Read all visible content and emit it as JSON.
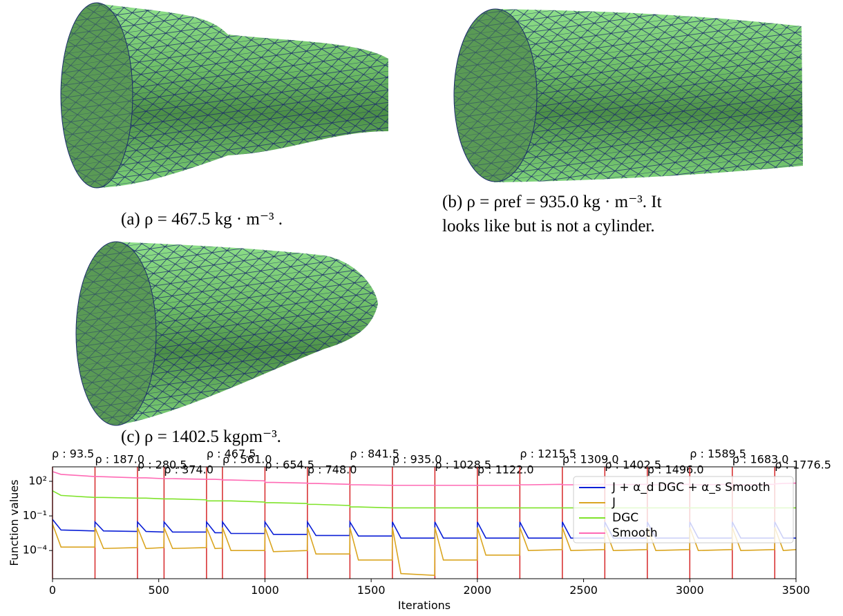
{
  "captions": {
    "a": "(a) ρ = 467.5 kg · m⁻³ .",
    "b": [
      "(b)  ρ  =  ρref  =  935.0 kg · m⁻³.   It",
      "looks like but is not a cylinder."
    ],
    "c": "(c) ρ = 1402.5 kgρm⁻³."
  },
  "chart_data": {
    "type": "line",
    "xlabel": "Iterations",
    "ylabel": "Function values",
    "log_y": true,
    "xlim": [
      0,
      3500
    ],
    "xticks": [
      0,
      500,
      1000,
      1500,
      2000,
      2500,
      3000,
      3500
    ],
    "ylim": [
      3.6e-07,
      1800
    ],
    "yticks": [
      {
        "value": 100,
        "label": "10²"
      },
      {
        "value": 0.1,
        "label": "10⁻¹"
      },
      {
        "value": 0.0001,
        "label": "10⁻⁴"
      }
    ],
    "legend": "right",
    "rho_line_color": "#d62728",
    "rho_changes": [
      {
        "x": 0,
        "label": "ρ : 93.5"
      },
      {
        "x": 200,
        "label": "ρ : 187.0"
      },
      {
        "x": 400,
        "label": "ρ : 280.5"
      },
      {
        "x": 525,
        "label": "ρ : 374.0"
      },
      {
        "x": 725,
        "label": "ρ : 467.5"
      },
      {
        "x": 800,
        "label": "ρ : 561.0"
      },
      {
        "x": 1000,
        "label": "ρ : 654.5"
      },
      {
        "x": 1200,
        "label": "ρ : 748.0"
      },
      {
        "x": 1400,
        "label": "ρ : 841.5"
      },
      {
        "x": 1600,
        "label": "ρ : 935.0"
      },
      {
        "x": 1800,
        "label": "ρ : 1028.5"
      },
      {
        "x": 2000,
        "label": "ρ : 1122.0"
      },
      {
        "x": 2200,
        "label": "ρ : 1215.5"
      },
      {
        "x": 2400,
        "label": "ρ : 1309.0"
      },
      {
        "x": 2600,
        "label": "ρ : 1402.5"
      },
      {
        "x": 2800,
        "label": "ρ : 1496.0"
      },
      {
        "x": 3000,
        "label": "ρ : 1589.5"
      },
      {
        "x": 3200,
        "label": "ρ : 1683.0"
      },
      {
        "x": 3400,
        "label": "ρ : 1776.5"
      }
    ],
    "x": [
      0,
      40,
      199,
      200,
      240,
      399,
      400,
      440,
      524,
      525,
      565,
      724,
      725,
      765,
      799,
      800,
      840,
      999,
      1000,
      1040,
      1199,
      1200,
      1240,
      1399,
      1400,
      1440,
      1599,
      1600,
      1640,
      1799,
      1800,
      1840,
      1999,
      2000,
      2040,
      2199,
      2200,
      2240,
      2399,
      2400,
      2440,
      2599,
      2600,
      2640,
      2799,
      2800,
      2840,
      2999,
      3000,
      3040,
      3199,
      3200,
      3240,
      3399,
      3400,
      3440,
      3500
    ],
    "series": [
      {
        "name": "J + α_d DGC + α_s Smooth",
        "color": "#0a1fd6",
        "values": [
          0.05,
          0.006,
          0.005,
          0.03,
          0.005,
          0.0045,
          0.03,
          0.0045,
          0.004,
          0.03,
          0.004,
          0.004,
          0.03,
          0.0035,
          0.0035,
          0.03,
          0.003,
          0.003,
          0.03,
          0.0025,
          0.0025,
          0.03,
          0.002,
          0.002,
          0.03,
          0.0018,
          0.0018,
          0.03,
          0.0012,
          0.0012,
          0.03,
          0.0012,
          0.0012,
          0.03,
          0.0012,
          0.0012,
          0.03,
          0.0012,
          0.0012,
          0.03,
          0.0012,
          0.0012,
          0.03,
          0.0012,
          0.0012,
          0.03,
          0.0012,
          0.0012,
          0.03,
          0.0012,
          0.0012,
          0.03,
          0.0012,
          0.0012,
          0.03,
          0.0012,
          0.0012
        ]
      },
      {
        "name": "J",
        "color": "#daa520",
        "values": [
          0.02,
          0.0002,
          0.0002,
          0.01,
          0.00015,
          0.00018,
          0.01,
          0.00015,
          0.00018,
          0.01,
          0.00015,
          0.00018,
          0.01,
          0.00015,
          0.00016,
          0.01,
          0.0001,
          0.0001,
          0.01,
          8e-05,
          0.0001,
          0.01,
          5e-05,
          5e-05,
          0.01,
          1.5e-05,
          1.5e-05,
          0.01,
          1e-06,
          7e-07,
          0.01,
          1.5e-05,
          1.5e-05,
          0.01,
          4e-05,
          4e-05,
          0.01,
          0.0001,
          0.00012,
          0.01,
          0.0001,
          0.00012,
          0.01,
          0.0001,
          0.00012,
          0.01,
          0.0001,
          0.00012,
          0.01,
          0.0001,
          0.00012,
          0.01,
          0.0001,
          0.00012,
          0.01,
          0.0001,
          0.00012
        ]
      },
      {
        "name": "DGC",
        "color": "#7fe32a",
        "values": [
          15,
          6,
          4,
          4,
          4,
          3.5,
          3.5,
          3.5,
          3,
          3,
          3,
          2.5,
          2,
          2,
          2,
          2,
          2,
          1.6,
          1.4,
          1.4,
          1.2,
          1,
          1,
          0.8,
          0.6,
          0.6,
          0.5,
          0.5,
          0.5,
          0.5,
          0.5,
          0.5,
          0.5,
          0.5,
          0.5,
          0.5,
          0.5,
          0.5,
          0.5,
          0.5,
          0.5,
          0.5,
          0.5,
          0.5,
          0.5,
          0.5,
          0.5,
          0.5,
          0.5,
          0.5,
          0.5,
          0.5,
          0.5,
          0.5,
          0.5,
          0.5,
          0.5
        ]
      },
      {
        "name": "Smooth",
        "color": "#ff69b4",
        "values": [
          700,
          400,
          260,
          260,
          250,
          200,
          200,
          200,
          170,
          170,
          170,
          150,
          150,
          150,
          140,
          130,
          130,
          110,
          80,
          80,
          70,
          65,
          65,
          55,
          50,
          50,
          45,
          45,
          45,
          45,
          45,
          45,
          45,
          45,
          45,
          45,
          50,
          50,
          55,
          50,
          50,
          55,
          50,
          50,
          55,
          50,
          50,
          55,
          50,
          50,
          55,
          50,
          50,
          55,
          60,
          65,
          70
        ]
      }
    ]
  }
}
